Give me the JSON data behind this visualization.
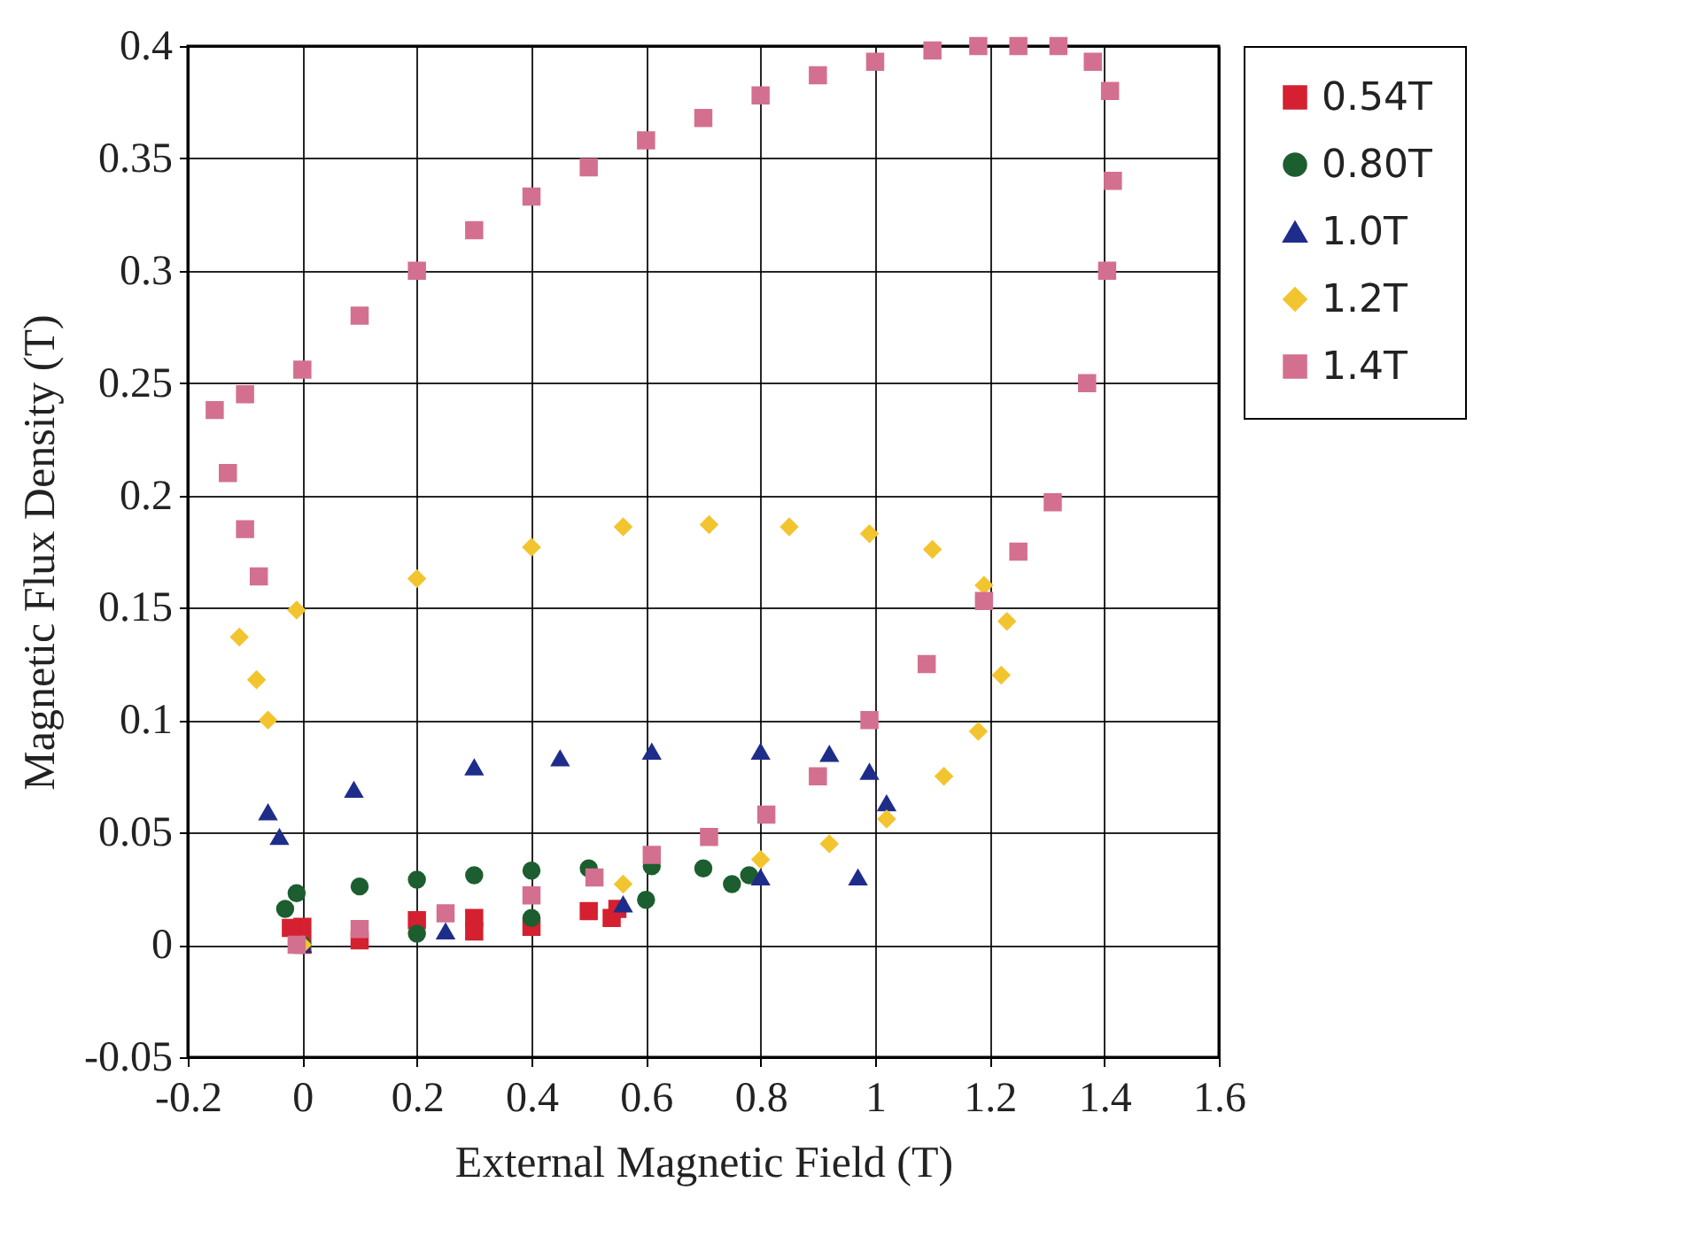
{
  "chart_data": {
    "type": "scatter",
    "xlabel": "External Magnetic Field (T)",
    "ylabel": "Magnetic Flux Density (T)",
    "xlim": [
      -0.2,
      1.6
    ],
    "xticks": [
      -0.2,
      0,
      0.2,
      0.4,
      0.6,
      0.8,
      1,
      1.2,
      1.4,
      1.6
    ],
    "ylim": [
      -0.05,
      0.4
    ],
    "yticks": [
      -0.05,
      0,
      0.05,
      0.1,
      0.15,
      0.2,
      0.25,
      0.3,
      0.35,
      0.4
    ],
    "grid": true,
    "legend": "right",
    "series": [
      {
        "name": "0.54T",
        "color": "#d42030",
        "marker": "square",
        "x": [
          0,
          0.1,
          0.3,
          0.4,
          0.54,
          0.55,
          0.5,
          0.3,
          0.2,
          0,
          -0.02
        ],
        "values": [
          0,
          0.002,
          0.006,
          0.008,
          0.012,
          0.016,
          0.015,
          0.012,
          0.011,
          0.008,
          0.0075
        ]
      },
      {
        "name": "0.80T",
        "color": "#1d5e30",
        "marker": "circle",
        "x": [
          0,
          0.2,
          0.4,
          0.6,
          0.75,
          0.78,
          0.7,
          0.61,
          0.5,
          0.4,
          0.3,
          0.2,
          0.1,
          -0.01,
          -0.03
        ],
        "values": [
          0,
          0.005,
          0.012,
          0.02,
          0.027,
          0.031,
          0.034,
          0.035,
          0.034,
          0.033,
          0.031,
          0.029,
          0.026,
          0.023,
          0.016
        ]
      },
      {
        "name": "1.0T",
        "color": "#1f2d8a",
        "marker": "triangle",
        "x": [
          0,
          0.25,
          0.56,
          0.8,
          0.97,
          1.02,
          0.99,
          0.92,
          0.8,
          0.61,
          0.45,
          0.3,
          0.09,
          -0.06,
          -0.04
        ],
        "values": [
          0,
          0.006,
          0.018,
          0.03,
          0.03,
          0.063,
          0.077,
          0.085,
          0.086,
          0.086,
          0.083,
          0.079,
          0.069,
          0.059,
          0.048
        ]
      },
      {
        "name": "1.2T",
        "color": "#f2c530",
        "marker": "diamond",
        "x": [
          0,
          0.56,
          0.8,
          0.92,
          1.02,
          1.12,
          1.18,
          1.22,
          1.23,
          1.19,
          1.1,
          0.99,
          0.85,
          0.71,
          0.56,
          0.4,
          0.2,
          -0.01,
          -0.11,
          -0.08,
          -0.06
        ],
        "values": [
          0,
          0.027,
          0.038,
          0.045,
          0.056,
          0.075,
          0.095,
          0.12,
          0.144,
          0.16,
          0.176,
          0.183,
          0.186,
          0.187,
          0.186,
          0.177,
          0.163,
          0.149,
          0.137,
          0.118,
          0.1
        ]
      },
      {
        "name": "1.4T",
        "color": "#d4708f",
        "marker": "square",
        "x": [
          -0.01,
          0.1,
          0.25,
          0.4,
          0.51,
          0.61,
          0.71,
          0.81,
          0.9,
          0.99,
          1.09,
          1.19,
          1.25,
          1.31,
          1.37,
          1.405,
          1.415,
          1.41,
          1.38,
          1.32,
          1.25,
          1.18,
          1.1,
          1.0,
          0.9,
          0.8,
          0.7,
          0.6,
          0.5,
          0.4,
          0.3,
          0.2,
          0.1,
          0,
          -0.1,
          -0.153,
          -0.13,
          -0.1,
          -0.076
        ],
        "values": [
          0,
          0.007,
          0.014,
          0.022,
          0.03,
          0.04,
          0.048,
          0.058,
          0.075,
          0.1,
          0.125,
          0.153,
          0.175,
          0.197,
          0.25,
          0.3,
          0.34,
          0.38,
          0.393,
          0.4,
          0.4,
          0.4,
          0.398,
          0.393,
          0.387,
          0.378,
          0.368,
          0.358,
          0.346,
          0.333,
          0.318,
          0.3,
          0.28,
          0.256,
          0.245,
          0.238,
          0.21,
          0.185,
          0.164
        ]
      }
    ]
  }
}
